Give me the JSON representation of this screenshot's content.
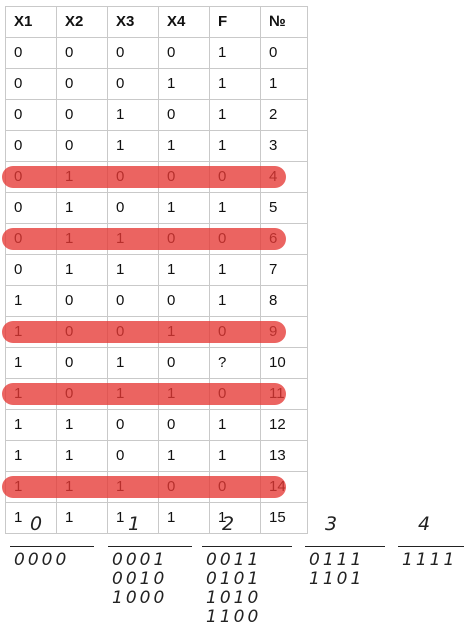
{
  "table": {
    "headers": [
      "X1",
      "X2",
      "X3",
      "X4",
      "F",
      "№"
    ],
    "rows": [
      [
        "0",
        "0",
        "0",
        "0",
        "1",
        "0"
      ],
      [
        "0",
        "0",
        "0",
        "1",
        "1",
        "1"
      ],
      [
        "0",
        "0",
        "1",
        "0",
        "1",
        "2"
      ],
      [
        "0",
        "0",
        "1",
        "1",
        "1",
        "3"
      ],
      [
        "0",
        "1",
        "0",
        "0",
        "0",
        "4"
      ],
      [
        "0",
        "1",
        "0",
        "1",
        "1",
        "5"
      ],
      [
        "0",
        "1",
        "1",
        "0",
        "0",
        "6"
      ],
      [
        "0",
        "1",
        "1",
        "1",
        "1",
        "7"
      ],
      [
        "1",
        "0",
        "0",
        "0",
        "1",
        "8"
      ],
      [
        "1",
        "0",
        "0",
        "1",
        "0",
        "9"
      ],
      [
        "1",
        "0",
        "1",
        "0",
        "?",
        "10"
      ],
      [
        "1",
        "0",
        "1",
        "1",
        "0",
        "11"
      ],
      [
        "1",
        "1",
        "0",
        "0",
        "1",
        "12"
      ],
      [
        "1",
        "1",
        "0",
        "1",
        "1",
        "13"
      ],
      [
        "1",
        "1",
        "1",
        "0",
        "0",
        "14"
      ],
      [
        "1",
        "1",
        "1",
        "1",
        "1",
        "15"
      ]
    ],
    "highlighted_rows": [
      4,
      6,
      9,
      11,
      14
    ],
    "highlight_color": "#e53935"
  },
  "notes": {
    "groups": [
      {
        "label": "0",
        "items": [
          "0000"
        ]
      },
      {
        "label": "1",
        "items": [
          "0001",
          "0010",
          "1000"
        ]
      },
      {
        "label": "2",
        "items": [
          "0011",
          "0101",
          "1010",
          "1100"
        ]
      },
      {
        "label": "3",
        "items": [
          "0111",
          "1101"
        ]
      },
      {
        "label": "4",
        "items": [
          "1111"
        ]
      }
    ]
  }
}
